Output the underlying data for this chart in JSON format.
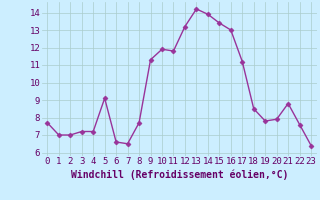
{
  "x": [
    0,
    1,
    2,
    3,
    4,
    5,
    6,
    7,
    8,
    9,
    10,
    11,
    12,
    13,
    14,
    15,
    16,
    17,
    18,
    19,
    20,
    21,
    22,
    23
  ],
  "y": [
    7.7,
    7.0,
    7.0,
    7.2,
    7.2,
    9.1,
    6.6,
    6.5,
    7.7,
    11.3,
    11.9,
    11.8,
    13.2,
    14.2,
    13.9,
    13.4,
    13.0,
    11.2,
    8.5,
    7.8,
    7.9,
    8.8,
    7.6,
    6.4
  ],
  "line_color": "#993399",
  "marker": "D",
  "marker_size": 2.5,
  "line_width": 1.0,
  "background_color": "#cceeff",
  "grid_color": "#aacccc",
  "xlabel": "Windchill (Refroidissement éolien,°C)",
  "xlabel_fontsize": 7,
  "tick_fontsize": 6.5,
  "ylim": [
    5.8,
    14.6
  ],
  "yticks": [
    6,
    7,
    8,
    9,
    10,
    11,
    12,
    13,
    14
  ],
  "xlim": [
    -0.5,
    23.5
  ],
  "xticks": [
    0,
    1,
    2,
    3,
    4,
    5,
    6,
    7,
    8,
    9,
    10,
    11,
    12,
    13,
    14,
    15,
    16,
    17,
    18,
    19,
    20,
    21,
    22,
    23
  ],
  "text_color": "#660066"
}
